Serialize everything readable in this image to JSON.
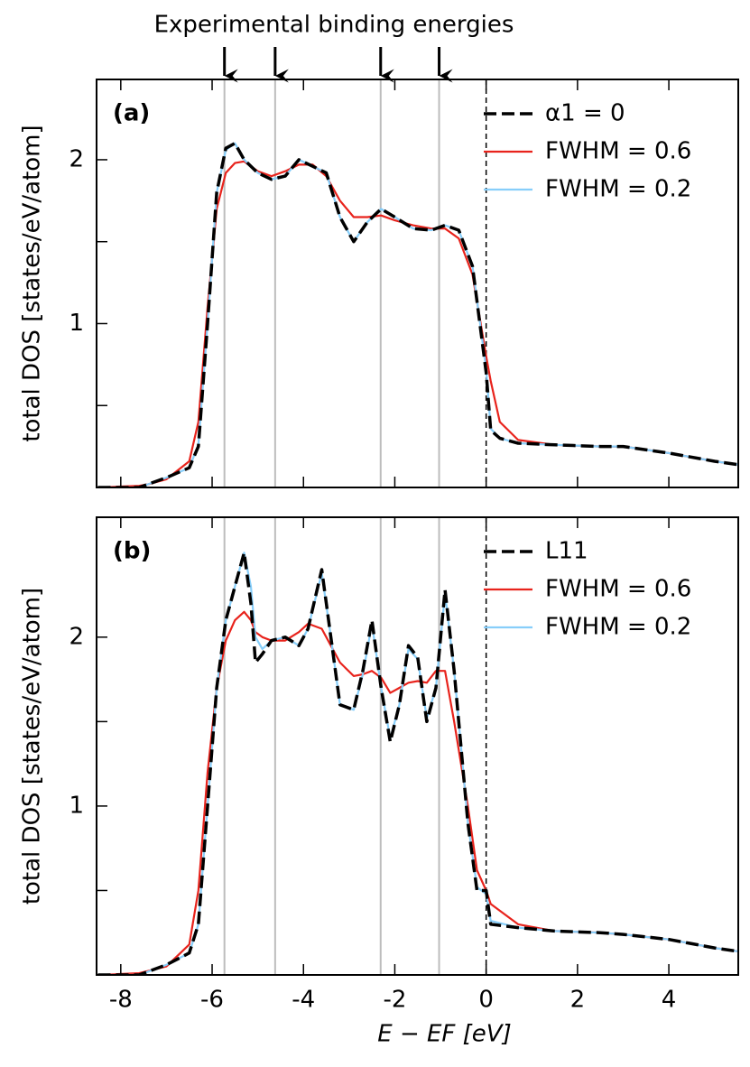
{
  "experimental": {
    "label": "Experimental binding energies",
    "energies": [
      -5.73,
      -4.62,
      -2.31,
      -1.03
    ]
  },
  "chart_data": [
    {
      "type": "line",
      "panel_label": "(a)",
      "ylabel": "total DOS [states/eV/atom]",
      "xlim": [
        -8.53,
        5.52
      ],
      "ylim": [
        0,
        2.49
      ],
      "yticks": [
        1,
        2
      ],
      "yminor": [
        0.5,
        1.5
      ],
      "xtick_marks": [
        -8,
        -6,
        -4,
        -2,
        0,
        2,
        4
      ],
      "fermi_level": 0,
      "legend": "upper right",
      "x": [
        -8.5,
        -7.6,
        -7.4,
        -7,
        -6.5,
        -6.3,
        -6.1,
        -5.9,
        -5.7,
        -5.5,
        -5.3,
        -5,
        -4.7,
        -4.4,
        -4.1,
        -3.8,
        -3.5,
        -3.2,
        -2.9,
        -2.6,
        -2.3,
        -2,
        -1.6,
        -1.2,
        -0.9,
        -0.6,
        -0.3,
        0,
        0.1,
        0.3,
        0.7,
        1.5,
        2.5,
        3,
        4,
        5,
        5.5
      ],
      "series": [
        {
          "name": "α1 = 0",
          "color": "#000000",
          "dashed": true,
          "values": [
            0,
            0,
            0.02,
            0.06,
            0.12,
            0.25,
            1.0,
            1.8,
            2.07,
            2.1,
            2.0,
            1.92,
            1.88,
            1.9,
            2.0,
            1.96,
            1.92,
            1.65,
            1.5,
            1.62,
            1.7,
            1.65,
            1.58,
            1.57,
            1.6,
            1.57,
            1.35,
            0.7,
            0.35,
            0.3,
            0.27,
            0.26,
            0.25,
            0.25,
            0.21,
            0.16,
            0.14
          ]
        },
        {
          "name": "FWHM = 0.6",
          "color": "#e8231c",
          "dashed": false,
          "values": [
            0,
            0.01,
            0.02,
            0.05,
            0.16,
            0.4,
            1.1,
            1.7,
            1.92,
            1.98,
            1.99,
            1.93,
            1.9,
            1.93,
            1.97,
            1.97,
            1.9,
            1.75,
            1.65,
            1.65,
            1.66,
            1.63,
            1.6,
            1.58,
            1.58,
            1.52,
            1.3,
            0.8,
            0.65,
            0.4,
            0.29,
            0.26,
            0.25,
            0.25,
            0.21,
            0.16,
            0.14
          ]
        },
        {
          "name": "FWHM = 0.2",
          "color": "#87cefa",
          "dashed": false,
          "values": [
            0,
            0,
            0.02,
            0.06,
            0.12,
            0.26,
            1.0,
            1.8,
            2.06,
            2.1,
            2.0,
            1.92,
            1.88,
            1.9,
            2.0,
            1.96,
            1.92,
            1.65,
            1.5,
            1.62,
            1.7,
            1.65,
            1.58,
            1.57,
            1.6,
            1.57,
            1.35,
            0.72,
            0.36,
            0.3,
            0.27,
            0.26,
            0.25,
            0.25,
            0.21,
            0.16,
            0.14
          ]
        }
      ]
    },
    {
      "type": "line",
      "panel_label": "(b)",
      "ylabel": "total DOS [states/eV/atom]",
      "xlabel": "E − EF [eV]",
      "xlim": [
        -8.53,
        5.52
      ],
      "ylim": [
        0,
        2.71
      ],
      "yticks": [
        1,
        2
      ],
      "yminor": [
        0.5,
        1.5
      ],
      "xticks": [
        -8,
        -6,
        -4,
        -2,
        0,
        2,
        4
      ],
      "fermi_level": 0,
      "legend": "upper right",
      "x": [
        -8.5,
        -7.6,
        -7,
        -6.5,
        -6.3,
        -6.1,
        -5.9,
        -5.7,
        -5.5,
        -5.3,
        -5.15,
        -5.05,
        -4.9,
        -4.7,
        -4.4,
        -4.1,
        -3.9,
        -3.6,
        -3.4,
        -3.2,
        -2.9,
        -2.7,
        -2.5,
        -2.3,
        -2.1,
        -1.9,
        -1.7,
        -1.5,
        -1.3,
        -1.1,
        -0.9,
        -0.7,
        -0.4,
        -0.2,
        0,
        0.1,
        0.7,
        1.5,
        2.5,
        3,
        4,
        5,
        5.5
      ],
      "series": [
        {
          "name": "L11",
          "color": "#000000",
          "dashed": true,
          "values": [
            0,
            0,
            0.06,
            0.13,
            0.3,
            1.0,
            1.7,
            2.1,
            2.3,
            2.5,
            2.2,
            1.85,
            1.9,
            1.98,
            2.0,
            1.95,
            2.05,
            2.4,
            2.0,
            1.6,
            1.57,
            1.8,
            2.1,
            1.7,
            1.38,
            1.6,
            1.95,
            1.88,
            1.5,
            1.7,
            2.28,
            1.8,
            0.9,
            0.5,
            0.5,
            0.3,
            0.28,
            0.26,
            0.25,
            0.24,
            0.21,
            0.16,
            0.14
          ]
        },
        {
          "name": "FWHM = 0.6",
          "color": "#e8231c",
          "dashed": false,
          "values": [
            0,
            0.01,
            0.05,
            0.18,
            0.5,
            1.2,
            1.7,
            1.98,
            2.1,
            2.15,
            2.1,
            2.03,
            2.0,
            1.98,
            1.98,
            2.03,
            2.08,
            2.05,
            1.95,
            1.85,
            1.77,
            1.78,
            1.8,
            1.76,
            1.67,
            1.7,
            1.73,
            1.74,
            1.73,
            1.8,
            1.8,
            1.5,
            1.0,
            0.62,
            0.5,
            0.42,
            0.3,
            0.26,
            0.25,
            0.24,
            0.21,
            0.16,
            0.14
          ]
        },
        {
          "name": "FWHM = 0.2",
          "color": "#87cefa",
          "dashed": false,
          "values": [
            0,
            0,
            0.06,
            0.13,
            0.3,
            1.0,
            1.7,
            2.1,
            2.3,
            2.5,
            2.3,
            2.0,
            1.93,
            1.98,
            2.0,
            1.95,
            2.05,
            2.38,
            2.0,
            1.6,
            1.57,
            1.78,
            2.08,
            1.7,
            1.4,
            1.6,
            1.93,
            1.87,
            1.52,
            1.7,
            2.26,
            1.8,
            0.9,
            0.52,
            0.48,
            0.32,
            0.28,
            0.26,
            0.25,
            0.24,
            0.21,
            0.16,
            0.14
          ]
        }
      ]
    }
  ]
}
